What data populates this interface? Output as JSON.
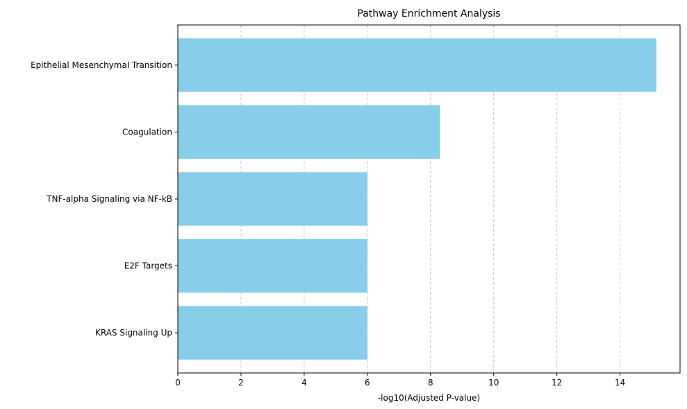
{
  "chart_data": {
    "type": "bar",
    "orientation": "horizontal",
    "title": "Pathway Enrichment Analysis",
    "xlabel": "-log10(Adjusted P-value)",
    "ylabel": "",
    "categories": [
      "Epithelial Mesenchymal Transition",
      "Coagulation",
      "TNF-alpha Signaling via NF-kB",
      "E2F Targets",
      "KRAS Signaling Up"
    ],
    "values": [
      15.15,
      8.3,
      6.0,
      6.0,
      6.0
    ],
    "xlim": [
      0,
      15.9
    ],
    "xticks": [
      0,
      2,
      4,
      6,
      8,
      10,
      12,
      14
    ],
    "grid": {
      "x": true,
      "y": false,
      "style": "dashed"
    },
    "bar_color": "#87CEEB",
    "grid_color": "#b0b0b0"
  }
}
